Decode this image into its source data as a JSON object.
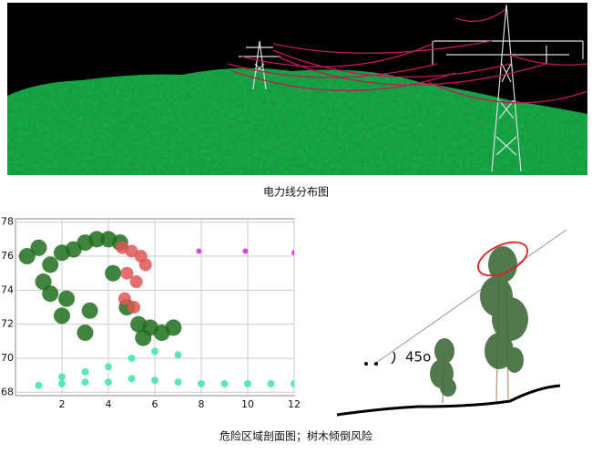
{
  "top_caption": "电力线分布图",
  "chart_data": {
    "type": "scatter",
    "xlim": [
      0,
      12
    ],
    "ylim": [
      67.8,
      78.2
    ],
    "xticks": [
      2,
      4,
      6,
      8,
      10,
      12
    ],
    "yticks": [
      68,
      70,
      72,
      74,
      76,
      78
    ],
    "grid": true,
    "series": [
      {
        "color": "#1f6e1f",
        "x": [
          0.5,
          1,
          1.5,
          2,
          2.5,
          3,
          3.5,
          4,
          4.5,
          1.2,
          2.2,
          3.2,
          4.2,
          5.3,
          5.8,
          6.3,
          6.8,
          3,
          2,
          1.5,
          4.8,
          5.5
        ],
        "values": [
          76,
          76.5,
          75.5,
          76.2,
          76.4,
          76.8,
          77,
          77,
          76.8,
          74.5,
          73.5,
          72.8,
          75,
          72,
          71.8,
          71.5,
          71.8,
          71.5,
          72.5,
          73.8,
          73,
          71.2
        ]
      },
      {
        "color": "#e05555",
        "x": [
          4.6,
          5,
          5.4,
          4.8,
          5.2,
          5.6,
          4.7,
          5.1
        ],
        "values": [
          76.5,
          76.3,
          76,
          75,
          74.5,
          75.5,
          73.5,
          73
        ]
      },
      {
        "color": "#40e6a6",
        "x": [
          1,
          2,
          3,
          4,
          5,
          6,
          7,
          8,
          9,
          10,
          11,
          12,
          4,
          5,
          6,
          7,
          2,
          3
        ],
        "values": [
          68.4,
          68.5,
          68.6,
          68.6,
          68.8,
          68.7,
          68.6,
          68.5,
          68.5,
          68.5,
          68.5,
          68.5,
          69.5,
          70,
          70.4,
          70.2,
          68.9,
          69.2
        ]
      },
      {
        "color": "#e020e0",
        "x": [
          7.9,
          9.9,
          12
        ],
        "values": [
          76.3,
          76.3,
          76.2
        ]
      }
    ]
  },
  "angle_label": "45o",
  "bottom_caption": "危险区域剖面图；树木倾倒风险"
}
